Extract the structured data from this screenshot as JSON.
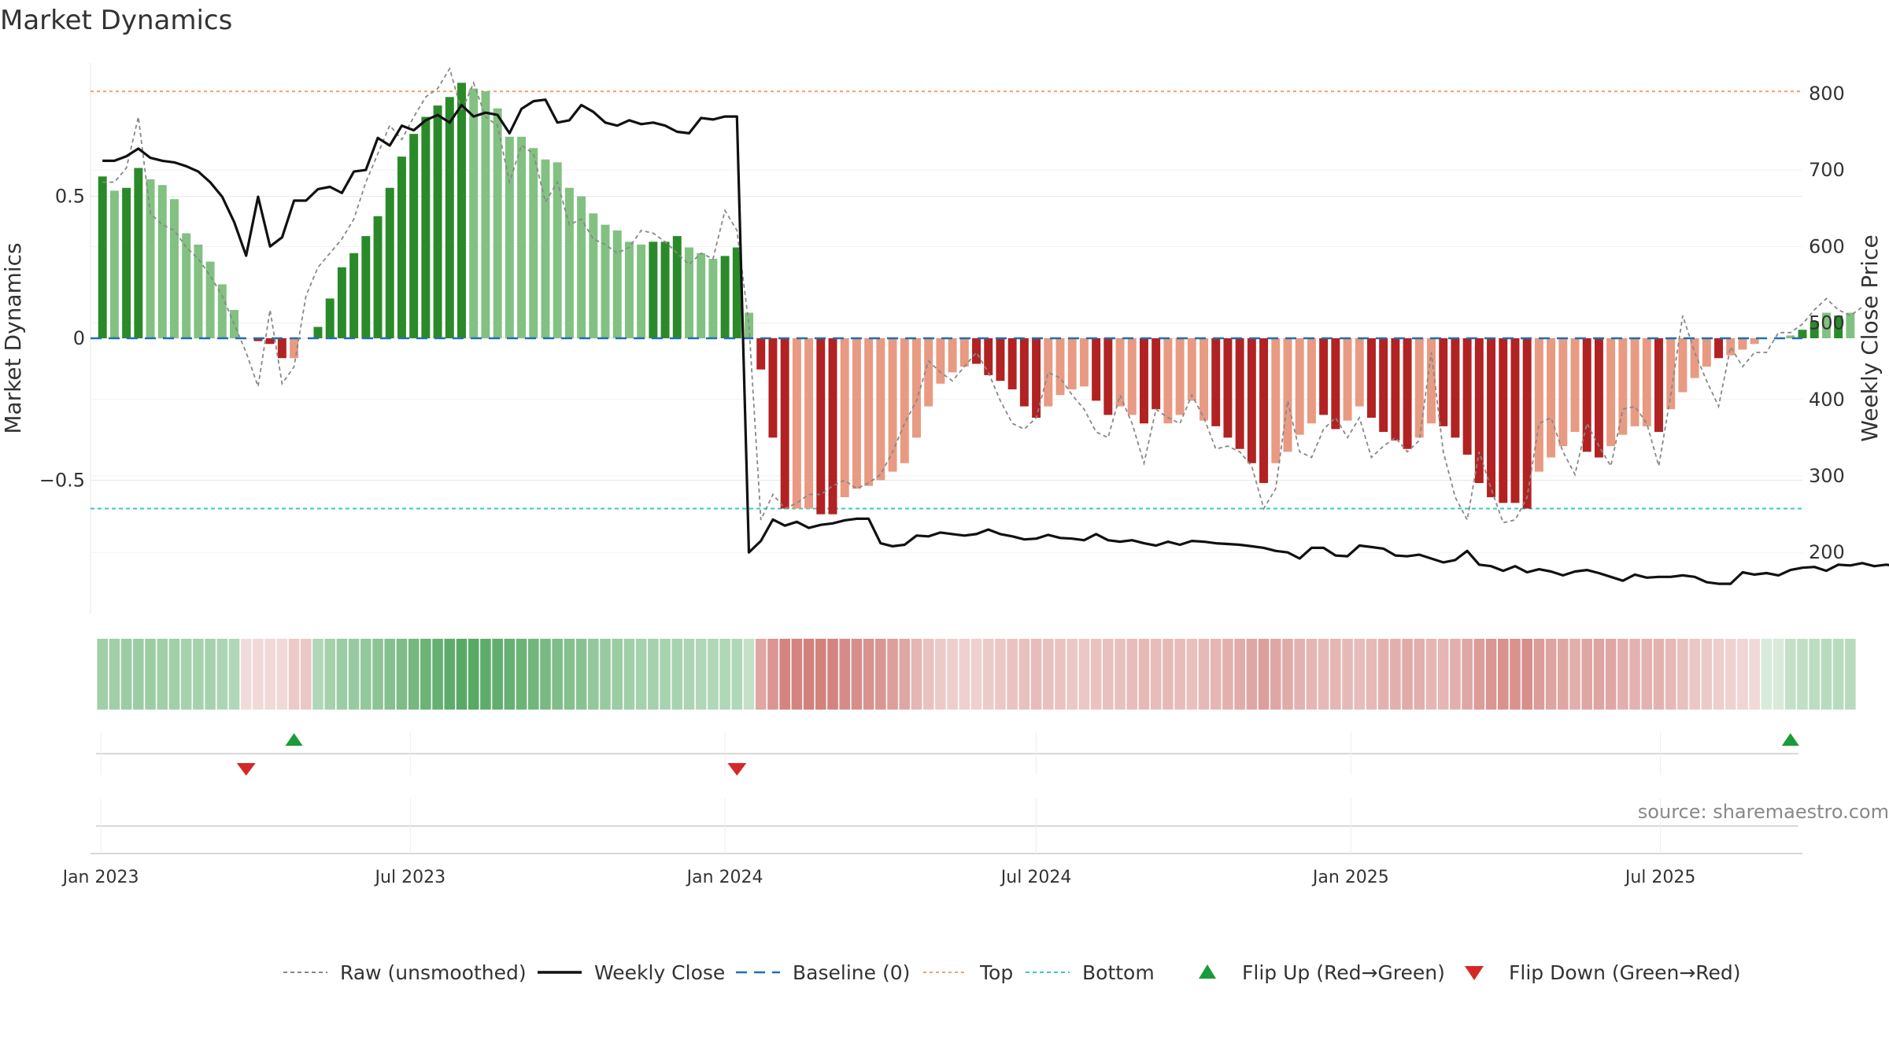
{
  "page_title": "Market Dynamics",
  "source_text": "source: sharemaestro.com",
  "chart_data": {
    "type": "bar",
    "title": "Market Dynamics",
    "ylabel_left": "Market Dynamics",
    "ylabel_right": "Weekly Close Price",
    "x_range": [
      "2022-12-26",
      "2025-09-22"
    ],
    "x_ticks": [
      {
        "date": "2023-01-01",
        "label": "Jan 2023"
      },
      {
        "date": "2023-07-01",
        "label": "Jul 2023"
      },
      {
        "date": "2024-01-01",
        "label": "Jan 2024"
      },
      {
        "date": "2024-07-01",
        "label": "Jul 2024"
      },
      {
        "date": "2025-01-01",
        "label": "Jan 2025"
      },
      {
        "date": "2025-07-01",
        "label": "Jul 2025"
      }
    ],
    "y_left": {
      "range": [
        -0.97,
        0.97
      ],
      "ticks": [
        {
          "value": 0.5,
          "label": "0.5"
        },
        {
          "value": 0,
          "label": "0"
        },
        {
          "value": -0.5,
          "label": "−0.5"
        }
      ]
    },
    "y_right": {
      "range": [
        120,
        840
      ],
      "ticks": [
        {
          "value": 800,
          "label": "800"
        },
        {
          "value": 700,
          "label": "700"
        },
        {
          "value": 600,
          "label": "600"
        },
        {
          "value": 500,
          "label": "500"
        },
        {
          "value": 400,
          "label": "400"
        },
        {
          "value": 300,
          "label": "300"
        },
        {
          "value": 200,
          "label": "200"
        }
      ]
    },
    "grid": true,
    "legend_position": "bottom",
    "colors": {
      "green_strong": "#2a8a2a",
      "green_light": "#82c182",
      "red_strong": "#b22222",
      "red_light": "#e89a82",
      "raw": "#888888",
      "close": "#111111",
      "baseline": "#1f6fb2",
      "top": "#f0a070",
      "bottom": "#3cc6c6",
      "flip_up": "#1a9a3a",
      "flip_down": "#d62728"
    },
    "weeks_start": "2023-01-02",
    "dynamics": [
      0.57,
      0.52,
      0.53,
      0.6,
      0.56,
      0.54,
      0.49,
      0.37,
      0.33,
      0.27,
      0.19,
      0.1,
      0,
      -0.01,
      -0.02,
      -0.07,
      -0.07,
      0,
      0.04,
      0.14,
      0.25,
      0.3,
      0.36,
      0.43,
      0.53,
      0.64,
      0.72,
      0.78,
      0.82,
      0.85,
      0.9,
      0.88,
      0.87,
      0.81,
      0.71,
      0.71,
      0.67,
      0.63,
      0.62,
      0.53,
      0.5,
      0.44,
      0.4,
      0.38,
      0.34,
      0.33,
      0.34,
      0.34,
      0.36,
      0.32,
      0.3,
      0.28,
      0.29,
      0.32,
      0.09,
      -0.11,
      -0.35,
      -0.6,
      -0.6,
      -0.6,
      -0.62,
      -0.62,
      -0.56,
      -0.53,
      -0.52,
      -0.5,
      -0.47,
      -0.44,
      -0.35,
      -0.24,
      -0.16,
      -0.12,
      -0.1,
      -0.09,
      -0.13,
      -0.15,
      -0.18,
      -0.24,
      -0.28,
      -0.24,
      -0.2,
      -0.18,
      -0.17,
      -0.22,
      -0.27,
      -0.24,
      -0.27,
      -0.3,
      -0.25,
      -0.3,
      -0.27,
      -0.22,
      -0.29,
      -0.31,
      -0.35,
      -0.39,
      -0.44,
      -0.51,
      -0.44,
      -0.4,
      -0.34,
      -0.3,
      -0.27,
      -0.32,
      -0.29,
      -0.24,
      -0.28,
      -0.33,
      -0.36,
      -0.39,
      -0.35,
      -0.3,
      -0.31,
      -0.35,
      -0.41,
      -0.51,
      -0.56,
      -0.58,
      -0.58,
      -0.6,
      -0.47,
      -0.42,
      -0.38,
      -0.33,
      -0.4,
      -0.42,
      -0.38,
      -0.34,
      -0.31,
      -0.31,
      -0.33,
      -0.25,
      -0.19,
      -0.14,
      -0.1,
      -0.07,
      -0.06,
      -0.04,
      -0.02,
      0,
      0,
      0.01,
      0.03,
      0.06,
      0.09,
      0.08,
      0.09
    ],
    "dynamics_strong": [
      1,
      0,
      1,
      1,
      0,
      0,
      0,
      0,
      0,
      0,
      0,
      0,
      0,
      1,
      1,
      1,
      0,
      1,
      1,
      1,
      1,
      1,
      1,
      1,
      1,
      1,
      1,
      1,
      1,
      1,
      1,
      0,
      0,
      0,
      0,
      0,
      0,
      0,
      0,
      0,
      0,
      0,
      0,
      0,
      0,
      0,
      1,
      1,
      1,
      0,
      0,
      0,
      1,
      1,
      0,
      1,
      1,
      1,
      0,
      0,
      1,
      1,
      0,
      0,
      0,
      0,
      0,
      0,
      0,
      0,
      0,
      0,
      0,
      1,
      1,
      1,
      1,
      1,
      1,
      0,
      0,
      0,
      0,
      1,
      1,
      0,
      0,
      1,
      1,
      0,
      0,
      0,
      0,
      1,
      1,
      1,
      1,
      1,
      0,
      0,
      0,
      0,
      1,
      1,
      0,
      0,
      1,
      1,
      1,
      1,
      0,
      0,
      1,
      1,
      1,
      1,
      1,
      1,
      1,
      1,
      0,
      0,
      0,
      0,
      1,
      1,
      0,
      0,
      0,
      0,
      1,
      0,
      0,
      0,
      0,
      1,
      0,
      0,
      0,
      0,
      1,
      0,
      1,
      1,
      0,
      1
    ],
    "raw": [
      0.55,
      0.55,
      0.6,
      0.78,
      0.44,
      0.4,
      0.38,
      0.32,
      0.28,
      0.22,
      0.15,
      0.05,
      -0.05,
      -0.17,
      0.1,
      -0.16,
      -0.1,
      0.15,
      0.25,
      0.3,
      0.35,
      0.42,
      0.55,
      0.65,
      0.75,
      0.7,
      0.78,
      0.85,
      0.88,
      0.95,
      0.8,
      0.9,
      0.78,
      0.75,
      0.55,
      0.68,
      0.65,
      0.48,
      0.55,
      0.4,
      0.42,
      0.35,
      0.33,
      0.3,
      0.32,
      0.38,
      0.37,
      0.34,
      0.3,
      0.26,
      0.3,
      0.28,
      0.45,
      0.38,
      0.05,
      -0.64,
      -0.55,
      -0.6,
      -0.58,
      -0.55,
      -0.55,
      -0.52,
      -0.5,
      -0.53,
      -0.51,
      -0.48,
      -0.4,
      -0.3,
      -0.22,
      -0.08,
      -0.12,
      -0.15,
      -0.1,
      -0.05,
      -0.12,
      -0.22,
      -0.3,
      -0.32,
      -0.28,
      -0.12,
      -0.14,
      -0.2,
      -0.25,
      -0.33,
      -0.35,
      -0.2,
      -0.3,
      -0.44,
      -0.25,
      -0.28,
      -0.3,
      -0.2,
      -0.28,
      -0.39,
      -0.38,
      -0.4,
      -0.45,
      -0.6,
      -0.53,
      -0.22,
      -0.4,
      -0.42,
      -0.32,
      -0.28,
      -0.35,
      -0.28,
      -0.42,
      -0.38,
      -0.35,
      -0.4,
      -0.36,
      -0.05,
      -0.4,
      -0.56,
      -0.64,
      -0.4,
      -0.53,
      -0.65,
      -0.64,
      -0.56,
      -0.3,
      -0.28,
      -0.4,
      -0.48,
      -0.3,
      -0.38,
      -0.45,
      -0.25,
      -0.24,
      -0.3,
      -0.45,
      -0.2,
      0.08,
      -0.05,
      -0.15,
      -0.24,
      -0.03,
      -0.1,
      -0.05,
      -0.05,
      0.02,
      0.02,
      0.05,
      0.1,
      0.14,
      0.1,
      0.08,
      0.11
    ],
    "weekly_close": [
      712,
      712,
      718,
      728,
      716,
      712,
      710,
      705,
      698,
      684,
      665,
      632,
      588,
      665,
      600,
      612,
      660,
      660,
      675,
      678,
      670,
      698,
      700,
      742,
      732,
      758,
      752,
      765,
      772,
      762,
      785,
      770,
      775,
      772,
      748,
      780,
      790,
      792,
      762,
      765,
      785,
      776,
      762,
      758,
      765,
      760,
      762,
      758,
      750,
      748,
      768,
      766,
      770,
      770,
      200,
      215,
      243,
      235,
      240,
      232,
      236,
      238,
      242,
      244,
      244,
      212,
      208,
      210,
      222,
      221,
      226,
      224,
      222,
      224,
      230,
      224,
      221,
      217,
      218,
      223,
      219,
      218,
      216,
      224,
      216,
      214,
      216,
      212,
      209,
      214,
      210,
      215,
      214,
      212,
      211,
      210,
      208,
      206,
      202,
      200,
      192,
      206,
      206,
      196,
      195,
      209,
      207,
      205,
      196,
      195,
      197,
      192,
      187,
      190,
      202,
      184,
      182,
      176,
      182,
      174,
      178,
      175,
      170,
      175,
      177,
      173,
      168,
      163,
      171,
      167,
      168,
      168,
      170,
      168,
      161,
      159,
      159,
      174,
      171,
      173,
      170,
      177,
      180,
      181,
      176,
      184,
      183,
      186,
      182,
      184,
      182,
      185,
      187
    ],
    "top_level": 0.87,
    "bottom_level": -0.6,
    "baseline": 0,
    "heatmap_intensity": [
      0.48,
      0.48,
      0.5,
      0.5,
      0.5,
      0.48,
      0.48,
      0.45,
      0.45,
      0.45,
      0.42,
      0.4,
      0.2,
      0.22,
      0.22,
      0.22,
      0.3,
      0.32,
      0.4,
      0.45,
      0.5,
      0.52,
      0.55,
      0.58,
      0.62,
      0.66,
      0.7,
      0.75,
      0.78,
      0.82,
      0.85,
      0.85,
      0.82,
      0.8,
      0.78,
      0.75,
      0.72,
      0.68,
      0.65,
      0.62,
      0.6,
      0.55,
      0.52,
      0.5,
      0.48,
      0.46,
      0.45,
      0.44,
      0.44,
      0.42,
      0.4,
      0.4,
      0.4,
      0.4,
      0.3,
      0.5,
      0.6,
      0.7,
      0.7,
      0.72,
      0.72,
      0.7,
      0.66,
      0.64,
      0.62,
      0.6,
      0.55,
      0.5,
      0.42,
      0.35,
      0.3,
      0.28,
      0.27,
      0.27,
      0.3,
      0.32,
      0.34,
      0.36,
      0.38,
      0.36,
      0.34,
      0.32,
      0.32,
      0.34,
      0.36,
      0.36,
      0.38,
      0.4,
      0.38,
      0.4,
      0.38,
      0.36,
      0.4,
      0.42,
      0.45,
      0.48,
      0.5,
      0.55,
      0.5,
      0.48,
      0.44,
      0.42,
      0.4,
      0.42,
      0.4,
      0.38,
      0.4,
      0.44,
      0.46,
      0.48,
      0.46,
      0.42,
      0.42,
      0.46,
      0.5,
      0.56,
      0.6,
      0.62,
      0.62,
      0.64,
      0.56,
      0.52,
      0.5,
      0.46,
      0.5,
      0.52,
      0.5,
      0.46,
      0.44,
      0.44,
      0.44,
      0.4,
      0.36,
      0.32,
      0.3,
      0.28,
      0.26,
      0.24,
      0.22,
      0.2,
      0.2,
      0.3,
      0.32,
      0.34,
      0.36,
      0.36,
      0.36
    ],
    "flips": [
      {
        "type": "up",
        "week": 16
      },
      {
        "type": "down",
        "week": 12
      },
      {
        "type": "down",
        "week": 53
      },
      {
        "type": "up",
        "week": 141
      }
    ],
    "legend": [
      {
        "key": "raw",
        "label": "Raw (unsmoothed)"
      },
      {
        "key": "close",
        "label": "Weekly Close"
      },
      {
        "key": "baseline",
        "label": "Baseline (0)"
      },
      {
        "key": "top",
        "label": "Top"
      },
      {
        "key": "bottom",
        "label": "Bottom"
      },
      {
        "key": "flip_up",
        "label": "Flip Up (Red→Green)"
      },
      {
        "key": "flip_down",
        "label": "Flip Down (Green→Red)"
      }
    ]
  }
}
